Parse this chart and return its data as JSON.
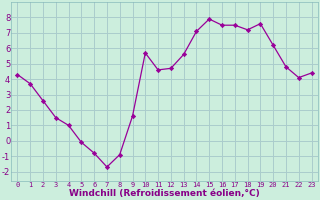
{
  "x": [
    0,
    1,
    2,
    3,
    4,
    5,
    6,
    7,
    8,
    9,
    10,
    11,
    12,
    13,
    14,
    15,
    16,
    17,
    18,
    19,
    20,
    21,
    22,
    23
  ],
  "y": [
    4.3,
    3.7,
    2.6,
    1.5,
    1.0,
    -0.1,
    -0.8,
    -1.7,
    -0.9,
    1.6,
    5.7,
    4.6,
    4.7,
    5.6,
    7.1,
    7.9,
    7.5,
    7.5,
    7.2,
    7.6,
    6.2,
    4.8,
    4.1,
    4.4
  ],
  "line_color": "#990099",
  "marker": "D",
  "marker_size": 2.2,
  "bg_color": "#cceedd",
  "grid_color": "#aacccc",
  "xlabel": "Windchill (Refroidissement éolien,°C)",
  "xlabel_fontsize": 6.5,
  "xtick_labels": [
    "0",
    "1",
    "2",
    "3",
    "4",
    "5",
    "6",
    "7",
    "8",
    "9",
    "10",
    "11",
    "12",
    "13",
    "14",
    "15",
    "16",
    "17",
    "18",
    "19",
    "20",
    "21",
    "22",
    "23"
  ],
  "ytick_values": [
    -2,
    -1,
    0,
    1,
    2,
    3,
    4,
    5,
    6,
    7,
    8
  ],
  "ylim": [
    -2.6,
    9.0
  ],
  "xlim": [
    -0.5,
    23.5
  ],
  "tick_color": "#880088",
  "tick_fontsize_x": 5.0,
  "tick_fontsize_y": 6.0
}
